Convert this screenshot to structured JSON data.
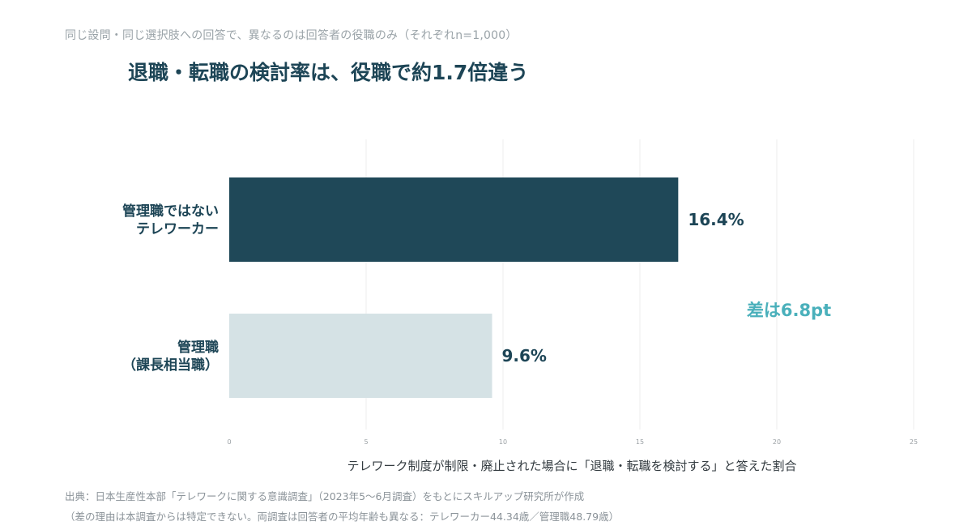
{
  "header": {
    "subtitle": "同じ設問・同じ選択肢への回答で、異なるのは回答者の役職のみ（それぞれn=1,000）",
    "title": "退職・転職の検討率は、役職で約1.7倍違う"
  },
  "chart_data": {
    "type": "bar",
    "orientation": "horizontal",
    "categories": [
      [
        "管理職ではない",
        "テレワーカー"
      ],
      [
        "管理職",
        "（課長相当職）"
      ]
    ],
    "values": [
      16.4,
      9.6
    ],
    "value_labels": [
      "16.4%",
      "9.6%"
    ],
    "bar_colors": [
      "#1f4858",
      "#d5e2e5"
    ],
    "xlim": [
      0,
      25
    ],
    "xticks": [
      0,
      5,
      10,
      15,
      20,
      25
    ],
    "xlabel": "テレワーク制度が制限・廃止された場合に「退職・転職を検討する」と答えた割合",
    "ylabel": "",
    "grid": true,
    "annotation": {
      "text": "差は6.8pt",
      "color": "#4ab0bb"
    }
  },
  "footnotes": {
    "source": "出典：日本生産性本部「テレワークに関する意識調査」（2023年5〜6月調査）をもとにスキルアップ研究所が作成",
    "note": "（差の理由は本調査からは特定できない。両調査は回答者の平均年齢も異なる：テレワーカー44.34歳／管理職48.79歳）"
  }
}
